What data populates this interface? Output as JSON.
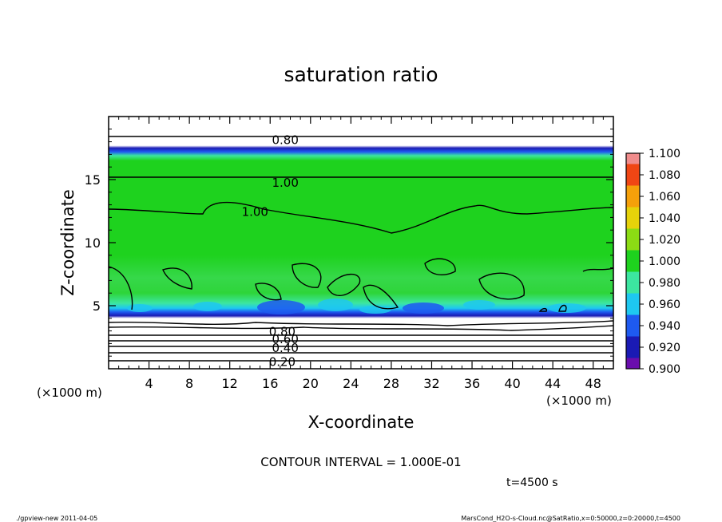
{
  "chart_data": {
    "type": "heatmap",
    "title": "saturation ratio",
    "xlabel": "X-coordinate",
    "ylabel": "Z-coordinate",
    "x_unit_label": "(×1000 m)",
    "y_unit_label": "(×1000 m)",
    "xlim": [
      0,
      50
    ],
    "ylim": [
      0,
      20
    ],
    "x_ticks": [
      4,
      8,
      12,
      16,
      20,
      24,
      28,
      32,
      36,
      40,
      44,
      48
    ],
    "y_ticks": [
      5,
      10,
      15
    ],
    "colorbar": {
      "levels": [
        0.9,
        0.92,
        0.94,
        0.96,
        0.98,
        1.0,
        1.02,
        1.04,
        1.06,
        1.08,
        1.1
      ],
      "tick_labels": [
        "0.900",
        "0.920",
        "0.940",
        "0.960",
        "0.980",
        "1.000",
        "1.020",
        "1.040",
        "1.060",
        "1.080",
        "1.100"
      ],
      "colors": [
        "#6a0dad",
        "#1a1ab4",
        "#1e5af0",
        "#1ec8f0",
        "#3ce6a0",
        "#1ed21e",
        "#8cdc14",
        "#e6d20a",
        "#f5a00a",
        "#f04614",
        "#f08c8c"
      ]
    },
    "contour_labels": [
      {
        "text": "0.80",
        "x": 17.5,
        "y": 18.2
      },
      {
        "text": "1.00",
        "x": 17.5,
        "y": 14.8
      },
      {
        "text": "1.00",
        "x": 14.5,
        "y": 12.5
      },
      {
        "text": "0.80",
        "x": 17.2,
        "y": 3.0
      },
      {
        "text": "0.60",
        "x": 17.5,
        "y": 2.4
      },
      {
        "text": "0.40",
        "x": 17.5,
        "y": 1.7
      },
      {
        "text": "0.20",
        "x": 17.2,
        "y": 0.6
      }
    ],
    "contour_interval_text": "CONTOUR INTERVAL = 1.000E-01",
    "time_text": "t=4500 s"
  },
  "footer": {
    "left": "./gpview-new   2011-04-05",
    "right": "MarsCond_H2O-s-Cloud.nc@SatRatio,x=0:50000,z=0:20000,t=4500"
  }
}
